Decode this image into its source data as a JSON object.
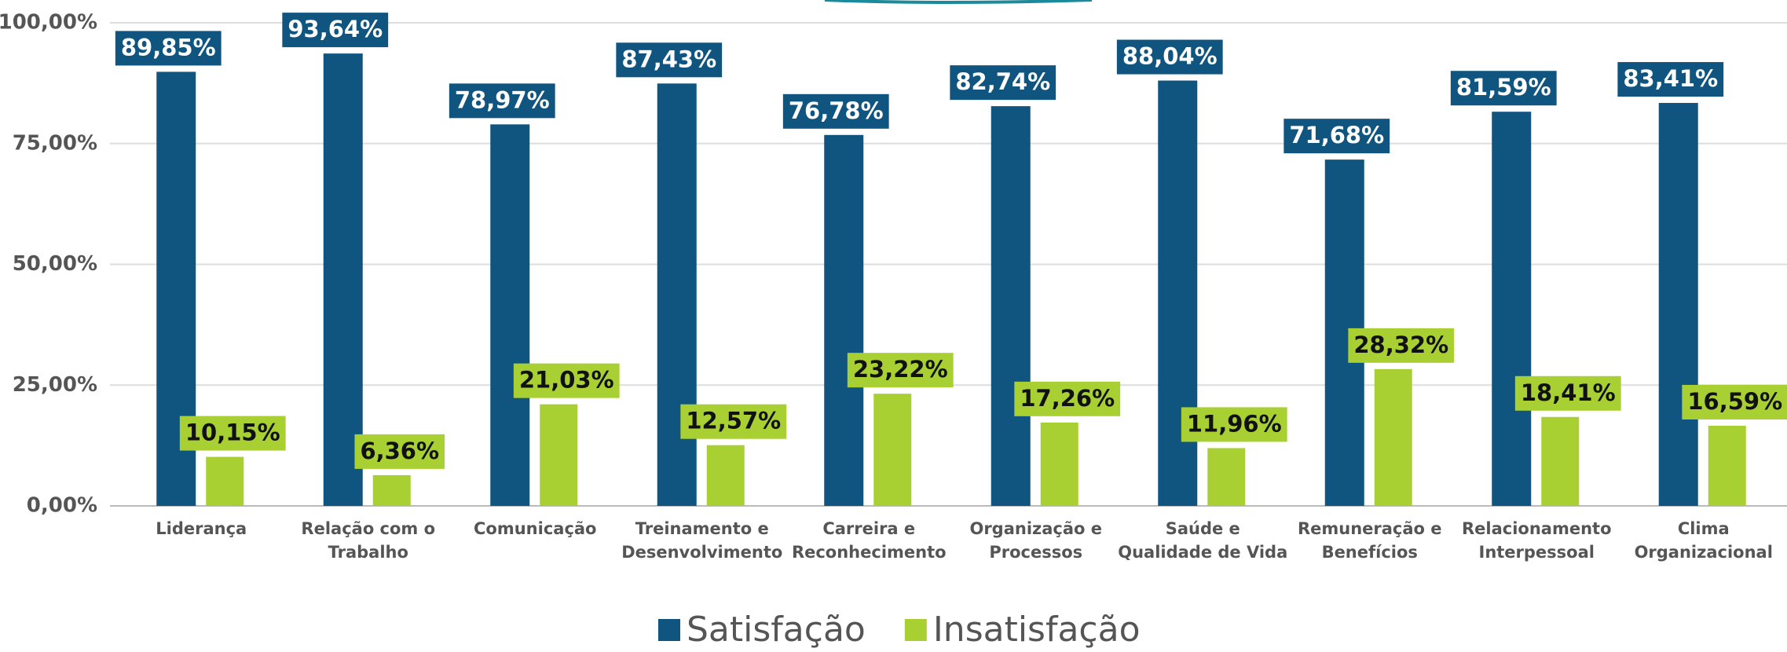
{
  "chart_data": {
    "type": "bar",
    "categories": [
      "Liderança",
      "Relação com o Trabalho",
      "Comunicação",
      "Treinamento e Desenvolvimento",
      "Carreira e Reconhecimento",
      "Organização e Processos",
      "Saúde e Qualidade de Vida",
      "Remuneração e Benefícios",
      "Relacionamento Interpessoal",
      "Clima Organizacional"
    ],
    "series": [
      {
        "name": "Satisfação",
        "color": "#0f5580",
        "values": [
          89.85,
          93.64,
          78.97,
          87.43,
          76.78,
          82.74,
          88.04,
          71.68,
          81.59,
          83.41
        ],
        "value_labels": [
          "89,85%",
          "93,64%",
          "78,97%",
          "87,43%",
          "76,78%",
          "82,74%",
          "88,04%",
          "71,68%",
          "81,59%",
          "83,41%"
        ]
      },
      {
        "name": "Insatisfação",
        "color": "#a8d033",
        "values": [
          10.15,
          6.36,
          21.03,
          12.57,
          23.22,
          17.26,
          11.96,
          28.32,
          18.41,
          16.59
        ],
        "value_labels": [
          "10,15%",
          "6,36%",
          "21,03%",
          "12,57%",
          "23,22%",
          "17,26%",
          "11,96%",
          "28,32%",
          "18,41%",
          "16,59%"
        ]
      }
    ],
    "ylim": [
      0,
      100
    ],
    "yticks": [
      {
        "value": 0,
        "label": "0,00%"
      },
      {
        "value": 25,
        "label": "25,00%"
      },
      {
        "value": 50,
        "label": "50,00%"
      },
      {
        "value": 75,
        "label": "75,00%"
      },
      {
        "value": 100,
        "label": "100,00%"
      }
    ],
    "grid": true,
    "legend": "bottom"
  }
}
